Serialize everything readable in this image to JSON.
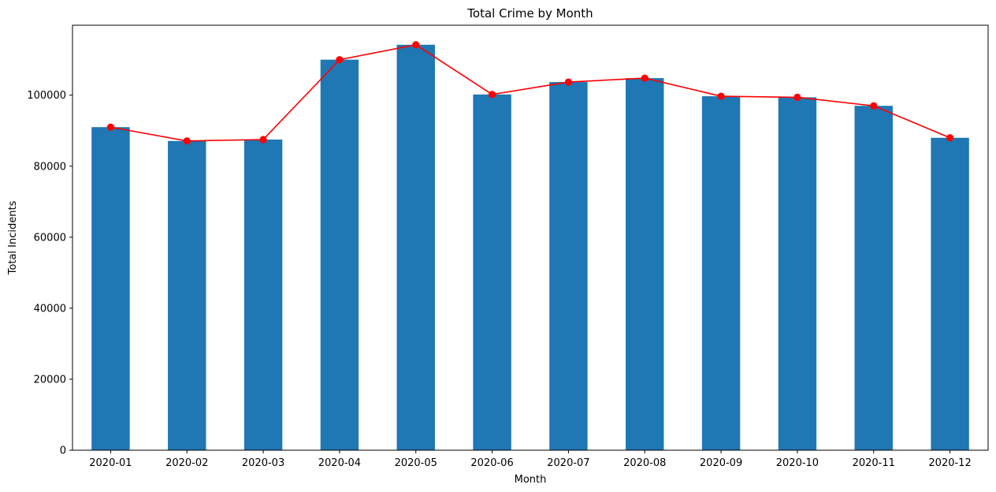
{
  "chart_data": {
    "type": "bar",
    "title": "Total Crime by Month",
    "xlabel": "Month",
    "ylabel": "Total Incidents",
    "categories": [
      "2020-01",
      "2020-02",
      "2020-03",
      "2020-04",
      "2020-05",
      "2020-06",
      "2020-07",
      "2020-08",
      "2020-09",
      "2020-10",
      "2020-11",
      "2020-12"
    ],
    "series": [
      {
        "type": "bar",
        "color": "#1f77b4",
        "values": [
          91000,
          87100,
          87500,
          110000,
          114200,
          100200,
          103700,
          104800,
          99700,
          99400,
          97000,
          88000
        ]
      },
      {
        "type": "line",
        "color": "#ff0000",
        "marker": "circle",
        "values": [
          91000,
          87100,
          87500,
          110000,
          114200,
          100200,
          103700,
          104800,
          99700,
          99400,
          97000,
          88000
        ]
      }
    ],
    "ylim": [
      0,
      119700
    ],
    "yticks": [
      0,
      20000,
      40000,
      60000,
      80000,
      100000
    ],
    "ytick_labels": [
      "0",
      "20000",
      "40000",
      "60000",
      "80000",
      "100000"
    ],
    "grid": false,
    "legend": "none"
  }
}
